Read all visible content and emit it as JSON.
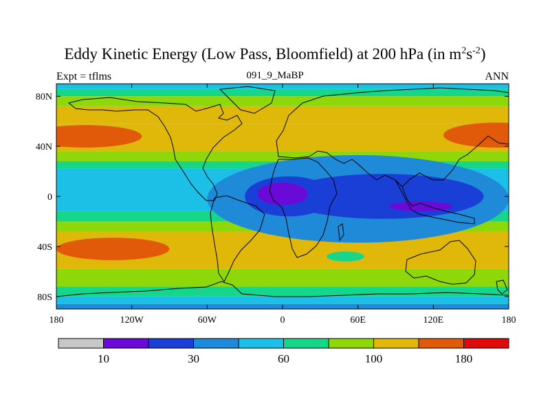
{
  "chart_data": {
    "type": "heatmap",
    "title_main": "Eddy Kinetic Energy (Low Pass, Bloomfield) at 200 hPa (in m",
    "title_unit_m_exp": "2",
    "title_unit_s": "s",
    "title_unit_s_exp": "-2",
    "title_close": ")",
    "subtitle": "091_9_MaBP",
    "left_label": "Expt = tflms",
    "right_label": "ANN",
    "x_range": [
      -180,
      180
    ],
    "y_range": [
      -90,
      90
    ],
    "x_ticks": [
      {
        "value": -180,
        "label": "180"
      },
      {
        "value": -120,
        "label": "120W"
      },
      {
        "value": -60,
        "label": "60W"
      },
      {
        "value": 0,
        "label": "0"
      },
      {
        "value": 60,
        "label": "60E"
      },
      {
        "value": 120,
        "label": "120E"
      },
      {
        "value": 180,
        "label": "180"
      }
    ],
    "y_ticks": [
      {
        "value": 80,
        "label": "80N"
      },
      {
        "value": 40,
        "label": "40N"
      },
      {
        "value": 0,
        "label": "0"
      },
      {
        "value": -40,
        "label": "40S"
      },
      {
        "value": -80,
        "label": "80S"
      }
    ],
    "colors": [
      "#c8c8c8",
      "#6a0ad8",
      "#1a3fd6",
      "#1e8ad8",
      "#1cc0e6",
      "#16d68a",
      "#8ed80a",
      "#e0b80a",
      "#e05a0a",
      "#e00a0a"
    ],
    "colorbar_labels": [
      {
        "index": 1,
        "label": "10"
      },
      {
        "index": 3,
        "label": "30"
      },
      {
        "index": 5,
        "label": "60"
      },
      {
        "index": 7,
        "label": "100"
      },
      {
        "index": 9,
        "label": "180"
      }
    ],
    "field_regions": [
      {
        "level": 3,
        "lon": 60,
        "lat": -2,
        "rlon": 120,
        "rlat": 35
      },
      {
        "level": 3,
        "lon": -10,
        "lat": -3,
        "rlon": 45,
        "rlat": 22
      },
      {
        "level": 2,
        "lon": 80,
        "lat": 0,
        "rlon": 80,
        "rlat": 18
      },
      {
        "level": 2,
        "lon": 5,
        "lat": 0,
        "rlon": 35,
        "rlat": 16
      },
      {
        "level": 1,
        "lon": 0,
        "lat": 2,
        "rlon": 20,
        "rlat": 9
      },
      {
        "level": 1,
        "lon": 110,
        "lat": -8,
        "rlon": 25,
        "rlat": 4
      },
      {
        "level": 8,
        "lon": -157,
        "lat": 48,
        "rlon": 45,
        "rlat": 9
      },
      {
        "level": 8,
        "lon": 170,
        "lat": 49,
        "rlon": 42,
        "rlat": 10
      },
      {
        "level": 8,
        "lon": -135,
        "lat": -42,
        "rlon": 45,
        "rlat": 9
      },
      {
        "level": 5,
        "lon": 50,
        "lat": -48,
        "rlon": 15,
        "rlat": 4
      }
    ]
  }
}
